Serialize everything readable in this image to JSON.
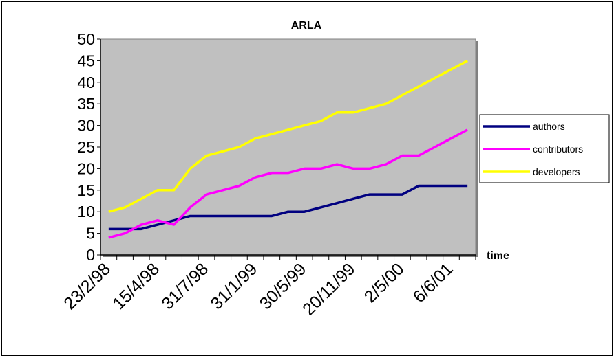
{
  "chart_data": {
    "type": "line",
    "title": "ARLA",
    "xlabel": "time",
    "ylabel": "",
    "ylim": [
      0,
      50
    ],
    "yticks": [
      0,
      5,
      10,
      15,
      20,
      25,
      30,
      35,
      40,
      45,
      50
    ],
    "grid": false,
    "legend_placement": "right",
    "plot_background": "#C0C0C0",
    "x_count": 23,
    "x_tick_labels": [
      {
        "index": 0,
        "label": "23/2/98"
      },
      {
        "index": 3,
        "label": "15/4/98"
      },
      {
        "index": 6,
        "label": "31/7/98"
      },
      {
        "index": 9,
        "label": "31/1/99"
      },
      {
        "index": 12,
        "label": "30/5/99"
      },
      {
        "index": 15,
        "label": "20/11/99"
      },
      {
        "index": 18,
        "label": "2/5/00"
      },
      {
        "index": 21,
        "label": "6/6/01"
      }
    ],
    "series": [
      {
        "name": "authors",
        "color": "#000080",
        "values": [
          6,
          6,
          6,
          7,
          8,
          9,
          9,
          9,
          9,
          9,
          9,
          10,
          10,
          11,
          12,
          13,
          14,
          14,
          14,
          16,
          16,
          16,
          16
        ]
      },
      {
        "name": "contributors",
        "color": "#FF00FF",
        "values": [
          4,
          5,
          7,
          8,
          7,
          11,
          14,
          15,
          16,
          18,
          19,
          19,
          20,
          20,
          21,
          20,
          20,
          21,
          23,
          23,
          25,
          27,
          29
        ]
      },
      {
        "name": "developers",
        "color": "#FFFF00",
        "values": [
          10,
          11,
          13,
          15,
          15,
          20,
          23,
          24,
          25,
          27,
          28,
          29,
          30,
          31,
          33,
          33,
          34,
          35,
          37,
          39,
          41,
          43,
          45
        ]
      }
    ]
  }
}
